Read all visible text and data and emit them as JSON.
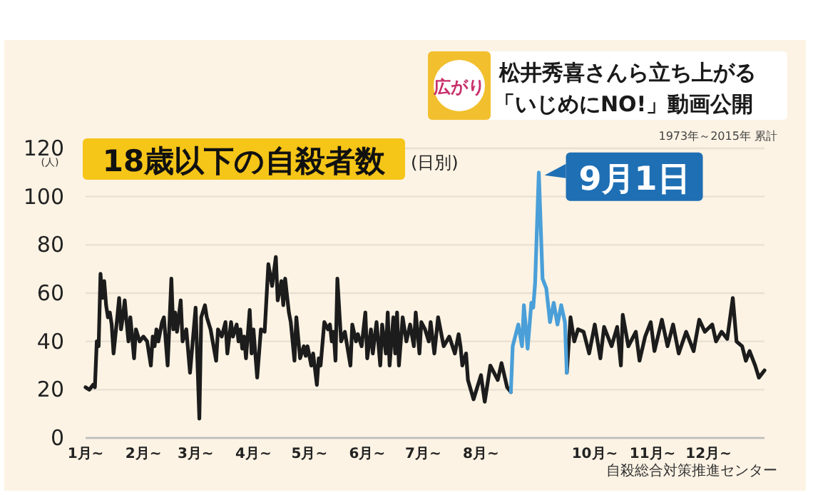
{
  "chart_data": {
    "type": "line",
    "title": "18歳以下の自殺者数",
    "subtitle": "(日別)",
    "ylabel": "(人)",
    "annotations": [
      "広がり",
      "松井秀喜さんら立ち上がる",
      "「いじめにNO!」動画公開",
      "1973年～2015年 累計",
      "自殺総合対策推進センター",
      {
        "text": "9月1日",
        "x": "--09-01",
        "y": 110
      }
    ],
    "xlim": [
      "--01-01",
      "--12-31"
    ],
    "ylim": [
      0,
      120
    ],
    "xticks": [
      {
        "value": "--01-01",
        "label": "1月~"
      },
      {
        "value": "--02-01",
        "label": "2月~"
      },
      {
        "value": "--03-01",
        "label": "3月~"
      },
      {
        "value": "--04-01",
        "label": "4月~"
      },
      {
        "value": "--05-01",
        "label": "5月~"
      },
      {
        "value": "--06-01",
        "label": "6月~"
      },
      {
        "value": "--07-01",
        "label": "7月~"
      },
      {
        "value": "--08-01",
        "label": "8月~"
      },
      {
        "value": "--10-01",
        "label": "10月~"
      },
      {
        "value": "--11-01",
        "label": "11月~"
      },
      {
        "value": "--12-01",
        "label": "12月~"
      }
    ],
    "yticks": [
      0,
      20,
      40,
      60,
      80,
      100,
      120
    ],
    "grid": "y",
    "series": [
      {
        "color": "#1c1c1c",
        "x": [
          "--01-01",
          "--01-03",
          "--01-05",
          "--01-06",
          "--01-07",
          "--01-08",
          "--01-09",
          "--01-10",
          "--01-11",
          "--01-12",
          "--01-13",
          "--01-14",
          "--01-15",
          "--01-16",
          "--01-18",
          "--01-19",
          "--01-20",
          "--01-21",
          "--01-22",
          "--01-23",
          "--01-24",
          "--01-25",
          "--01-27",
          "--01-28",
          "--01-30",
          "--02-01",
          "--02-03",
          "--02-05",
          "--02-06",
          "--02-07",
          "--02-08",
          "--02-09",
          "--02-11",
          "--02-12",
          "--02-14",
          "--02-16",
          "--02-17",
          "--02-18",
          "--02-19",
          "--02-21",
          "--02-22",
          "--02-24",
          "--02-26",
          "--03-01",
          "--03-03",
          "--03-04",
          "--03-06",
          "--03-07",
          "--03-09",
          "--03-12",
          "--03-13",
          "--03-15",
          "--03-17",
          "--03-18",
          "--03-20",
          "--03-21",
          "--03-23",
          "--03-24",
          "--03-25",
          "--03-26",
          "--03-27",
          "--03-28",
          "--03-30",
          "--03-31",
          "--04-01",
          "--04-03",
          "--04-05",
          "--04-07",
          "--04-09",
          "--04-11",
          "--04-13",
          "--04-14",
          "--04-16",
          "--04-17",
          "--04-18",
          "--04-20",
          "--04-21",
          "--04-23",
          "--04-24",
          "--04-26",
          "--04-28",
          "--04-29",
          "--04-30",
          "--05-02",
          "--05-03",
          "--05-05",
          "--05-06",
          "--05-07",
          "--05-09",
          "--05-11",
          "--05-12",
          "--05-13",
          "--05-14",
          "--05-15",
          "--05-16",
          "--05-18",
          "--05-20",
          "--05-23",
          "--05-24",
          "--05-26",
          "--05-27",
          "--05-29",
          "--05-31",
          "--06-01",
          "--06-03",
          "--06-04",
          "--06-06",
          "--06-08",
          "--06-09",
          "--06-11",
          "--06-12",
          "--06-13",
          "--06-15",
          "--06-16",
          "--06-17",
          "--06-18",
          "--06-20",
          "--06-22",
          "--06-24",
          "--06-26",
          "--06-27",
          "--06-29",
          "--06-30",
          "--07-02",
          "--07-04",
          "--07-05",
          "--07-07",
          "--07-09",
          "--07-12",
          "--07-15",
          "--07-18",
          "--07-20",
          "--07-21",
          "--07-22",
          "--07-24",
          "--07-25",
          "--07-28",
          "--08-01",
          "--08-03",
          "--08-06",
          "--08-10",
          "--08-12",
          "--08-15",
          "--08-17",
          "--09-01",
          "--09-16",
          "--09-18",
          "--09-20",
          "--09-22",
          "--09-25",
          "--09-28",
          "--10-01",
          "--10-04",
          "--10-06",
          "--10-10",
          "--10-13",
          "--10-15",
          "--10-16",
          "--10-19",
          "--10-23",
          "--10-25",
          "--10-28",
          "--10-31",
          "--11-02",
          "--11-06",
          "--11-09",
          "--11-12",
          "--11-15",
          "--11-19",
          "--11-23",
          "--11-26",
          "--11-29",
          "--12-03",
          "--12-05",
          "--12-08",
          "--12-11",
          "--12-14",
          "--12-16",
          "--12-19",
          "--12-21",
          "--12-23",
          "--12-26",
          "--12-28",
          "--12-30",
          "--12-31"
        ],
        "values": [
          21,
          20,
          22,
          21,
          40,
          38,
          68,
          58,
          65,
          55,
          50,
          52,
          47,
          35,
          50,
          58,
          45,
          50,
          57,
          48,
          40,
          50,
          33,
          45,
          40,
          42,
          40,
          30,
          42,
          38,
          45,
          40,
          48,
          50,
          30,
          66,
          45,
          52,
          44,
          57,
          40,
          45,
          27,
          54,
          8,
          50,
          55,
          50,
          45,
          32,
          45,
          42,
          48,
          35,
          48,
          42,
          47,
          40,
          45,
          37,
          42,
          33,
          53,
          35,
          45,
          25,
          45,
          44,
          72,
          63,
          75,
          57,
          65,
          55,
          66,
          52,
          48,
          32,
          50,
          33,
          38,
          34,
          38,
          30,
          35,
          22,
          33,
          30,
          48,
          45,
          47,
          40,
          44,
          32,
          66,
          40,
          44,
          30,
          47,
          40,
          43,
          38,
          52,
          33,
          45,
          35,
          48,
          30,
          47,
          35,
          52,
          30,
          50,
          35,
          52,
          30,
          50,
          40,
          47,
          38,
          52,
          35,
          48,
          45,
          40,
          48,
          35,
          50,
          38,
          42,
          35,
          43,
          38,
          30,
          35,
          24,
          16,
          26,
          15,
          30,
          24,
          31,
          21,
          19,
          null,
          27,
          50,
          40,
          45,
          44,
          35,
          47,
          33,
          46,
          38,
          46,
          30,
          51,
          38,
          44,
          32,
          42,
          48,
          36,
          49,
          38,
          47,
          35,
          44,
          36,
          49,
          44,
          47,
          40,
          44,
          41,
          58,
          40,
          38,
          32,
          36,
          30,
          25,
          27,
          28
        ]
      },
      {
        "color": "#4a9fd8",
        "x": [
          "--08-17",
          "--08-18",
          "--08-21",
          "--08-23",
          "--08-24",
          "--08-26",
          "--08-28",
          "--08-29",
          "--08-30",
          "--09-01",
          "--09-03",
          "--09-05",
          "--09-07",
          "--09-09",
          "--09-11",
          "--09-13",
          "--09-15",
          "--09-16"
        ],
        "values": [
          19,
          38,
          47,
          38,
          55,
          37,
          56,
          54,
          64,
          110,
          66,
          62,
          48,
          56,
          47,
          55,
          48,
          27
        ]
      }
    ]
  }
}
